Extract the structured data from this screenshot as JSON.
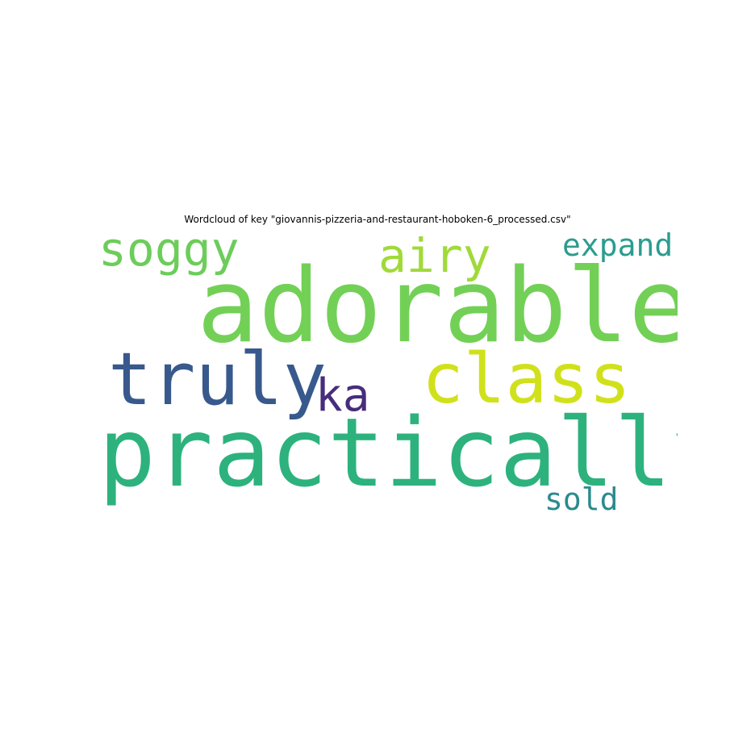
{
  "title": "Wordcloud of key \"giovannis-pizzeria-and-restaurant-hoboken-6_processed.csv\"",
  "words": {
    "soggy": {
      "text": "soggy",
      "color": "#6ccd5a"
    },
    "airy": {
      "text": "airy",
      "color": "#a0da39"
    },
    "expand": {
      "text": "expand",
      "color": "#2a9d8e"
    },
    "adorable": {
      "text": "adorable",
      "color": "#73d056"
    },
    "truly": {
      "text": "truly",
      "color": "#38598c"
    },
    "class": {
      "text": "class",
      "color": "#d0e11c"
    },
    "ka": {
      "text": "ka",
      "color": "#472d7b"
    },
    "practically": {
      "text": "practically",
      "color": "#2db27d"
    },
    "sold": {
      "text": "sold",
      "color": "#2c8a8e"
    }
  }
}
